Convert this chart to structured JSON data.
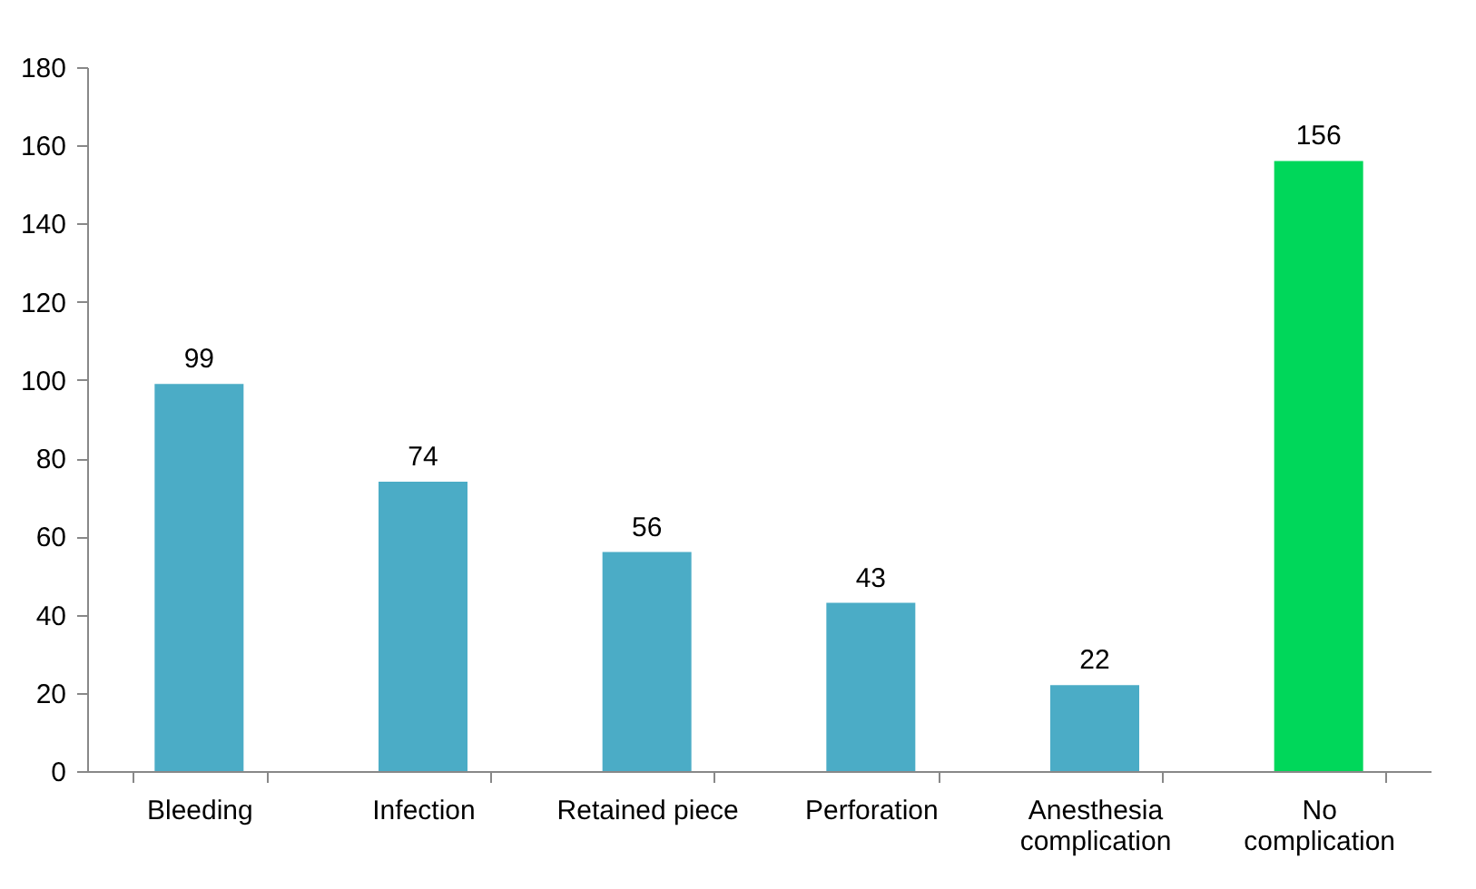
{
  "chart_data": {
    "type": "bar",
    "categories": [
      "Bleeding",
      "Infection",
      "Retained piece",
      "Perforation",
      "Anesthesia complication",
      "No complication"
    ],
    "values": [
      99,
      74,
      56,
      43,
      22,
      156
    ],
    "colors": [
      "#4bacc6",
      "#4bacc6",
      "#4bacc6",
      "#4bacc6",
      "#4bacc6",
      "#00d75a"
    ],
    "ylim": [
      0,
      180
    ],
    "yticks": [
      0,
      20,
      40,
      60,
      80,
      100,
      120,
      140,
      160,
      180
    ],
    "data_labels": true,
    "grid": false
  }
}
